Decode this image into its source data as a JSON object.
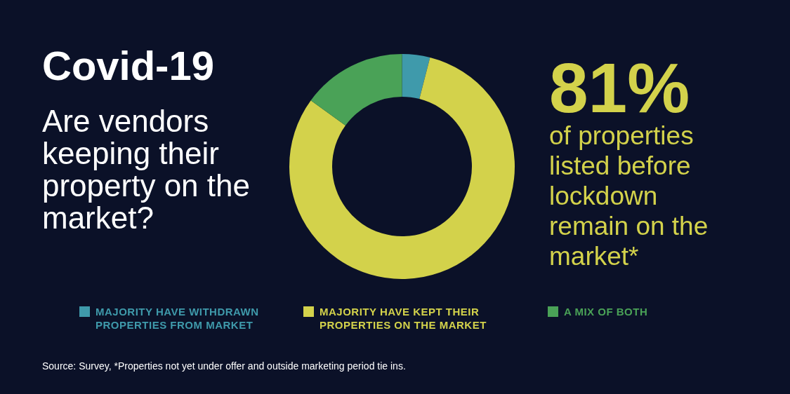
{
  "chart_data": {
    "type": "donut",
    "title": "Covid-19",
    "subtitle": "Are vendors keeping their property on the market?",
    "categories": [
      "MAJORITY HAVE WITHDRAWN PROPERTIES FROM MARKET",
      "MAJORITY HAVE KEPT THEIR PROPERTIES ON THE MARKET",
      "A MIX OF BOTH"
    ],
    "values": [
      4,
      81,
      15
    ],
    "colors": [
      "#3f9aab",
      "#d3d24b",
      "#4aa257"
    ],
    "legend": "bottom",
    "annotations": [
      "81%",
      "of properties listed before lockdown remain on the market*",
      "Source: Survey, *Properties not yet under offer and outside marketing period tie ins."
    ]
  }
}
